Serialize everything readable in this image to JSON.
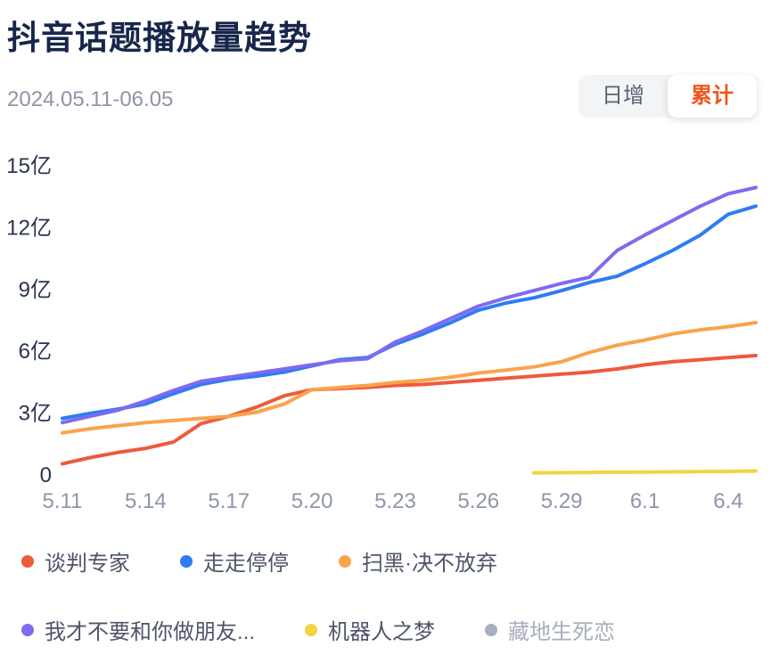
{
  "header": {
    "title": "抖音话题播放量趋势",
    "date_range": "2024.05.11-06.05"
  },
  "toggle": {
    "options": [
      {
        "label": "日增",
        "active": false
      },
      {
        "label": "累计",
        "active": true
      }
    ]
  },
  "colors": {
    "accent": "#f0551a",
    "axis_label": "#2a3450",
    "x_label": "#8d96a8",
    "disabled_legend": "#a7aebd"
  },
  "chart_data": {
    "type": "line",
    "title": "抖音话题播放量趋势",
    "unit": "亿",
    "grid": false,
    "legend_position": "bottom",
    "ylim": [
      0,
      15
    ],
    "y_ticks": [
      0,
      3,
      6,
      9,
      12,
      15
    ],
    "y_tick_labels": [
      "0",
      "3亿",
      "6亿",
      "9亿",
      "12亿",
      "15亿"
    ],
    "x": [
      "5.11",
      "5.12",
      "5.13",
      "5.14",
      "5.15",
      "5.16",
      "5.17",
      "5.18",
      "5.19",
      "5.20",
      "5.21",
      "5.22",
      "5.23",
      "5.24",
      "5.25",
      "5.26",
      "5.27",
      "5.28",
      "5.29",
      "5.30",
      "5.31",
      "6.1",
      "6.2",
      "6.3",
      "6.4",
      "6.5"
    ],
    "x_tick_labels": [
      "5.11",
      "5.14",
      "5.17",
      "5.20",
      "5.23",
      "5.26",
      "5.29",
      "6.1",
      "6.4"
    ],
    "series": [
      {
        "name": "谈判专家",
        "color": "#ee5a3c",
        "disabled": false,
        "values": [
          0.5,
          0.8,
          1.05,
          1.25,
          1.55,
          2.45,
          2.8,
          3.25,
          3.8,
          4.1,
          4.15,
          4.2,
          4.3,
          4.35,
          4.45,
          4.55,
          4.65,
          4.75,
          4.85,
          4.95,
          5.1,
          5.3,
          5.45,
          5.55,
          5.65,
          5.75
        ]
      },
      {
        "name": "走走停停",
        "color": "#2e7cf2",
        "disabled": false,
        "values": [
          2.7,
          2.95,
          3.15,
          3.4,
          3.9,
          4.35,
          4.6,
          4.75,
          4.95,
          5.25,
          5.55,
          5.65,
          6.3,
          6.8,
          7.35,
          7.95,
          8.3,
          8.55,
          8.9,
          9.3,
          9.6,
          10.2,
          10.85,
          11.6,
          12.6,
          13.0
        ]
      },
      {
        "name": "扫黑·决不放弃",
        "color": "#f8a44c",
        "disabled": false,
        "values": [
          2.0,
          2.2,
          2.35,
          2.5,
          2.6,
          2.7,
          2.8,
          3.0,
          3.4,
          4.1,
          4.2,
          4.3,
          4.45,
          4.55,
          4.7,
          4.9,
          5.05,
          5.2,
          5.45,
          5.9,
          6.25,
          6.5,
          6.8,
          7.0,
          7.15,
          7.35
        ]
      },
      {
        "name": "我才不要和你做朋友...",
        "color": "#7e6bf0",
        "disabled": false,
        "values": [
          2.5,
          2.8,
          3.1,
          3.55,
          4.05,
          4.5,
          4.7,
          4.9,
          5.1,
          5.3,
          5.5,
          5.6,
          6.4,
          6.95,
          7.55,
          8.15,
          8.55,
          8.9,
          9.25,
          9.55,
          10.85,
          11.6,
          12.3,
          13.0,
          13.6,
          13.9
        ]
      },
      {
        "name": "机器人之梦",
        "color": "#f2d53e",
        "disabled": false,
        "values": [
          null,
          null,
          null,
          null,
          null,
          null,
          null,
          null,
          null,
          null,
          null,
          null,
          null,
          null,
          null,
          null,
          null,
          0.06,
          0.07,
          0.08,
          0.09,
          0.1,
          0.11,
          0.12,
          0.13,
          0.15
        ]
      },
      {
        "name": "藏地生死恋",
        "color": "#a9b1c3",
        "disabled": true,
        "values": []
      }
    ]
  }
}
